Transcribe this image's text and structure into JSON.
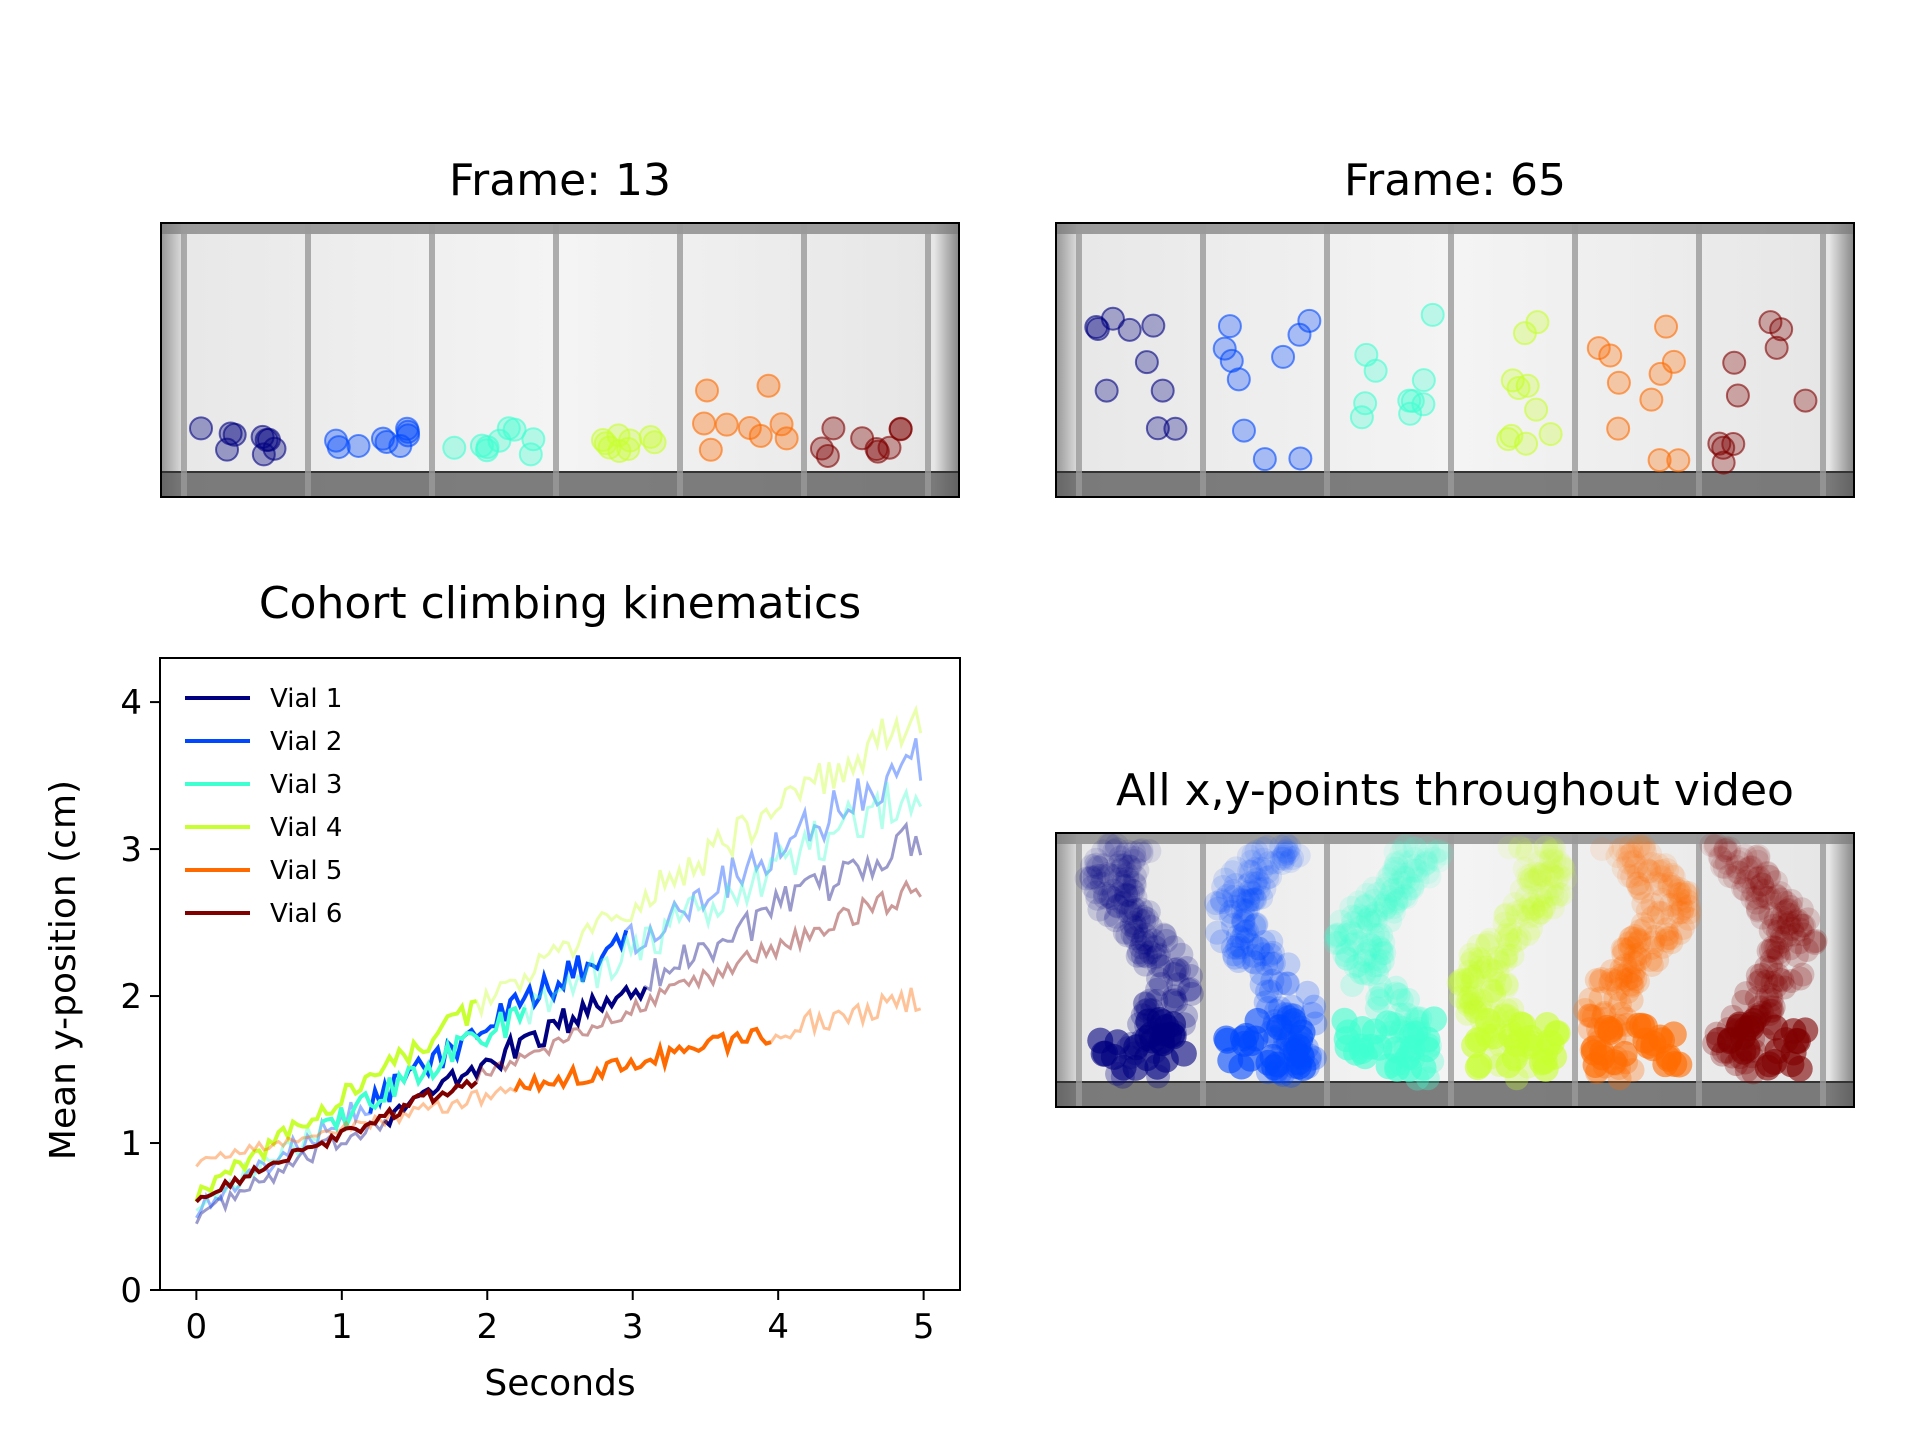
{
  "panels": {
    "frame13_title": "Frame: 13",
    "frame65_title": "Frame: 65",
    "allpoints_title": "All x,y-points throughout video"
  },
  "vial_colors": [
    "#000080",
    "#0047ff",
    "#40ffd0",
    "#c8ff30",
    "#ff6a00",
    "#800000"
  ],
  "chart_data": {
    "type": "line",
    "title": "Cohort climbing kinematics",
    "xlabel": "Seconds",
    "ylabel": "Mean y-position (cm)",
    "xlim": [
      -0.25,
      5.25
    ],
    "ylim": [
      0,
      4.3
    ],
    "xticks": [
      0,
      1,
      2,
      3,
      4,
      5
    ],
    "yticks": [
      0,
      1,
      2,
      3,
      4
    ],
    "legend": "upper-left",
    "grid": false,
    "series": [
      {
        "name": "Vial 1",
        "color": "#000080",
        "start": [
          0.0,
          0.5
        ],
        "end": [
          4.98,
          3.1
        ],
        "solid": [
          1.28,
          3.1
        ],
        "noise": 0.1
      },
      {
        "name": "Vial 2",
        "color": "#0047ff",
        "start": [
          0.0,
          0.55
        ],
        "end": [
          4.98,
          3.63
        ],
        "solid": [
          1.17,
          2.98
        ],
        "noise": 0.12
      },
      {
        "name": "Vial 3",
        "color": "#40ffd0",
        "start": [
          0.0,
          0.6
        ],
        "end": [
          4.98,
          3.45
        ],
        "solid": [
          0.85,
          2.27
        ],
        "noise": 0.12
      },
      {
        "name": "Vial 4",
        "color": "#c8ff30",
        "start": [
          0.0,
          0.65
        ],
        "end": [
          4.98,
          3.92
        ],
        "solid": [
          0.0,
          1.95
        ],
        "noise": 0.1
      },
      {
        "name": "Vial 5",
        "color": "#ff6a00",
        "start": [
          0.0,
          0.87
        ],
        "end": [
          4.98,
          1.99
        ],
        "solid": [
          2.18,
          3.98
        ],
        "noise": 0.06
      },
      {
        "name": "Vial 6",
        "color": "#800000",
        "start": [
          0.0,
          0.63
        ],
        "end": [
          4.98,
          2.75
        ],
        "solid": [
          0.0,
          1.95
        ],
        "noise": 0.06
      }
    ]
  }
}
